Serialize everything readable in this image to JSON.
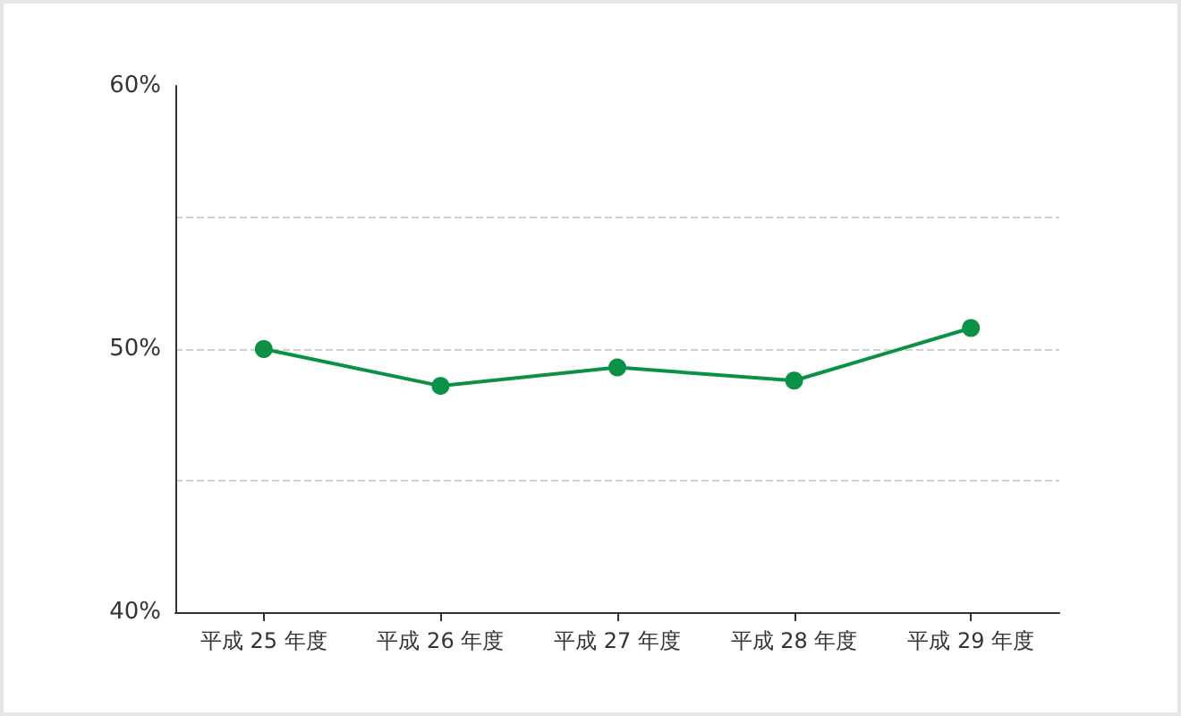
{
  "chart_data": {
    "type": "line",
    "categories": [
      "平成 25 年度",
      "平成 26 年度",
      "平成 27 年度",
      "平成 28 年度",
      "平成 29 年度"
    ],
    "series": [
      {
        "color": "#0a9146",
        "values": [
          50.0,
          48.6,
          49.3,
          48.8,
          50.8
        ]
      }
    ],
    "ylim": [
      40,
      60
    ],
    "yticks": [
      {
        "value": 40,
        "label": "40%"
      },
      {
        "value": 45,
        "label": null
      },
      {
        "value": 50,
        "label": "50%"
      },
      {
        "value": 55,
        "label": null
      },
      {
        "value": 60,
        "label": "60%"
      }
    ],
    "grid": "y",
    "marker": "circle",
    "line_style": "solid"
  }
}
